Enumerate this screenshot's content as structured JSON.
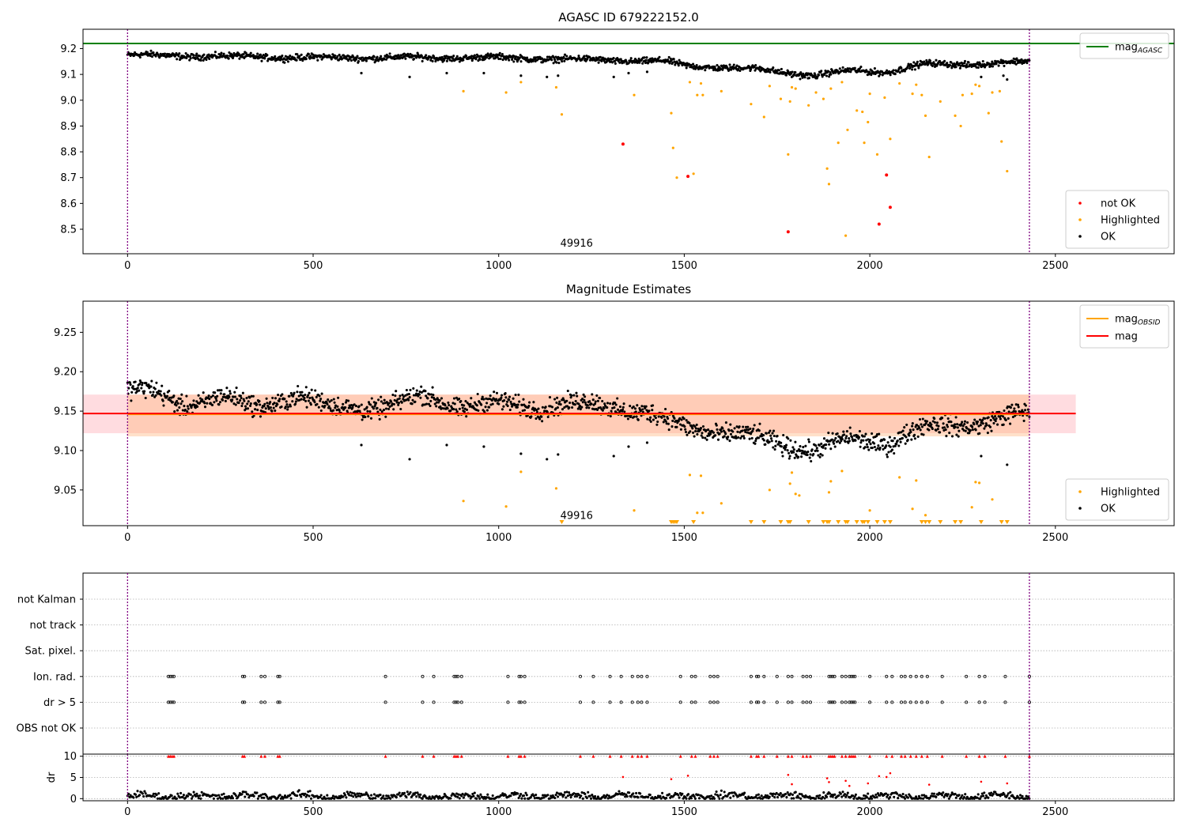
{
  "chart_data": [
    {
      "type": "scatter",
      "title": "AGASC ID 679222152.0",
      "xlim": [
        -120,
        2820
      ],
      "ylim": [
        8.405,
        9.275
      ],
      "xticks": [
        0,
        500,
        1000,
        1500,
        2000,
        2500
      ],
      "yticks": [
        8.5,
        8.6,
        8.7,
        8.8,
        8.9,
        9.0,
        9.1,
        9.2
      ],
      "ytick_decimals": 1,
      "obs_boundaries": [
        0,
        2430
      ],
      "obsid_annotation": {
        "text": "49916",
        "x": 1210,
        "y": 8.445
      },
      "reference_lines": [
        {
          "name": "mag_AGASC",
          "y": 9.22,
          "x_range": [
            -120,
            2820
          ],
          "color": "#008000"
        }
      ],
      "legend_top": [
        {
          "main": "mag",
          "sub": "AGASC",
          "color": "#008000"
        }
      ],
      "legend_bottom": [
        {
          "label": "not OK",
          "color": "#ff0000"
        },
        {
          "label": "Highlighted",
          "color": "#ffa500"
        },
        {
          "label": "OK",
          "color": "#000000"
        }
      ],
      "ok_trend": [
        [
          0,
          9.175
        ],
        [
          250,
          9.17
        ],
        [
          500,
          9.165
        ],
        [
          900,
          9.165
        ],
        [
          1000,
          9.165
        ],
        [
          1150,
          9.16
        ],
        [
          1300,
          9.155
        ],
        [
          1450,
          9.15
        ],
        [
          1500,
          9.135
        ],
        [
          1700,
          9.12
        ],
        [
          1850,
          9.095
        ],
        [
          1950,
          9.115
        ],
        [
          2050,
          9.11
        ],
        [
          2150,
          9.14
        ],
        [
          2300,
          9.14
        ],
        [
          2430,
          9.15
        ]
      ],
      "ok_scatter_amplitude": 0.011,
      "ok_outliers": [
        [
          630,
          9.105
        ],
        [
          760,
          9.09
        ],
        [
          860,
          9.105
        ],
        [
          960,
          9.105
        ],
        [
          1060,
          9.095
        ],
        [
          1130,
          9.09
        ],
        [
          1160,
          9.095
        ],
        [
          1310,
          9.09
        ],
        [
          1350,
          9.105
        ],
        [
          1400,
          9.11
        ],
        [
          2300,
          9.09
        ],
        [
          2360,
          9.095
        ],
        [
          2370,
          9.08
        ]
      ],
      "highlighted": [
        [
          905,
          9.035
        ],
        [
          1020,
          9.03
        ],
        [
          1060,
          9.07
        ],
        [
          1155,
          9.05
        ],
        [
          1170,
          8.945
        ],
        [
          1365,
          9.02
        ],
        [
          1465,
          8.95
        ],
        [
          1470,
          8.815
        ],
        [
          1480,
          8.7
        ],
        [
          1515,
          9.07
        ],
        [
          1525,
          8.715
        ],
        [
          1535,
          9.02
        ],
        [
          1545,
          9.065
        ],
        [
          1550,
          9.02
        ],
        [
          1600,
          9.035
        ],
        [
          1680,
          8.985
        ],
        [
          1715,
          8.935
        ],
        [
          1730,
          9.055
        ],
        [
          1760,
          9.005
        ],
        [
          1780,
          8.79
        ],
        [
          1785,
          8.995
        ],
        [
          1790,
          9.05
        ],
        [
          1800,
          9.045
        ],
        [
          1835,
          8.98
        ],
        [
          1855,
          9.03
        ],
        [
          1875,
          9.005
        ],
        [
          1885,
          8.735
        ],
        [
          1890,
          8.675
        ],
        [
          1895,
          9.045
        ],
        [
          1915,
          8.835
        ],
        [
          1925,
          9.07
        ],
        [
          1935,
          8.475
        ],
        [
          1940,
          8.885
        ],
        [
          1965,
          8.96
        ],
        [
          1980,
          8.955
        ],
        [
          1985,
          8.835
        ],
        [
          1995,
          8.915
        ],
        [
          2000,
          9.025
        ],
        [
          2020,
          8.79
        ],
        [
          2040,
          9.01
        ],
        [
          2055,
          8.85
        ],
        [
          2080,
          9.065
        ],
        [
          2115,
          9.025
        ],
        [
          2125,
          9.06
        ],
        [
          2140,
          9.02
        ],
        [
          2150,
          8.94
        ],
        [
          2160,
          8.78
        ],
        [
          2190,
          8.995
        ],
        [
          2230,
          8.94
        ],
        [
          2245,
          8.9
        ],
        [
          2250,
          9.02
        ],
        [
          2275,
          9.025
        ],
        [
          2285,
          9.06
        ],
        [
          2295,
          9.055
        ],
        [
          2320,
          8.95
        ],
        [
          2330,
          9.03
        ],
        [
          2350,
          9.035
        ],
        [
          2355,
          8.84
        ],
        [
          2370,
          8.725
        ]
      ],
      "not_ok": [
        [
          1335,
          8.83
        ],
        [
          1510,
          8.705
        ],
        [
          1780,
          8.49
        ],
        [
          2025,
          8.52
        ],
        [
          2045,
          8.71
        ],
        [
          2055,
          8.585
        ]
      ]
    },
    {
      "type": "scatter",
      "title": "Magnitude Estimates",
      "xlim": [
        -120,
        2820
      ],
      "ylim": [
        9.0047,
        9.2895
      ],
      "xticks": [
        0,
        500,
        1000,
        1500,
        2000,
        2500
      ],
      "yticks": [
        9.05,
        9.1,
        9.15,
        9.2,
        9.25
      ],
      "ytick_decimals": 2,
      "obs_boundaries": [
        0,
        2430
      ],
      "obsid_annotation": {
        "text": "49916",
        "x": 1210,
        "y": 9.017
      },
      "bands": [
        {
          "name": "mag band",
          "y_low": 9.122,
          "y_high": 9.171,
          "x_range": [
            -120,
            2555
          ],
          "color": "#ff9aa6",
          "opacity": 0.35
        },
        {
          "name": "mag_OBSID band",
          "y_low": 9.118,
          "y_high": 9.171,
          "x_range": [
            0,
            2430
          ],
          "color": "#ffb37a",
          "opacity": 0.4
        }
      ],
      "reference_lines": [
        {
          "name": "mag_OBSID",
          "y": 9.146,
          "x_range": [
            0,
            2430
          ],
          "color": "#ffa500"
        },
        {
          "name": "mag",
          "y": 9.147,
          "x_range": [
            -120,
            2555
          ],
          "color": "#ff0000"
        }
      ],
      "legend_top": [
        {
          "main": "mag",
          "sub": "OBSID",
          "color": "#ffa500"
        },
        {
          "main": "mag",
          "sub": "",
          "color": "#ff0000"
        }
      ],
      "legend_bottom": [
        {
          "label": "Highlighted",
          "color": "#ffa500"
        },
        {
          "label": "OK",
          "color": "#000000"
        }
      ],
      "ok_trend": [
        [
          0,
          9.178
        ],
        [
          60,
          9.175
        ],
        [
          150,
          9.158
        ],
        [
          250,
          9.168
        ],
        [
          350,
          9.155
        ],
        [
          450,
          9.17
        ],
        [
          550,
          9.155
        ],
        [
          700,
          9.155
        ],
        [
          800,
          9.17
        ],
        [
          900,
          9.155
        ],
        [
          1000,
          9.16
        ],
        [
          1100,
          9.155
        ],
        [
          1250,
          9.16
        ],
        [
          1400,
          9.148
        ],
        [
          1500,
          9.13
        ],
        [
          1650,
          9.12
        ],
        [
          1700,
          9.115
        ],
        [
          1850,
          9.1
        ],
        [
          1950,
          9.115
        ],
        [
          2050,
          9.11
        ],
        [
          2150,
          9.13
        ],
        [
          2300,
          9.135
        ],
        [
          2430,
          9.148
        ]
      ],
      "ok_scatter_amplitude": 0.011,
      "ok_outliers": [
        [
          630,
          9.107
        ],
        [
          760,
          9.089
        ],
        [
          860,
          9.107
        ],
        [
          960,
          9.105
        ],
        [
          1060,
          9.096
        ],
        [
          1130,
          9.089
        ],
        [
          1160,
          9.095
        ],
        [
          1310,
          9.093
        ],
        [
          1350,
          9.105
        ],
        [
          1400,
          9.11
        ],
        [
          2300,
          9.093
        ],
        [
          2370,
          9.082
        ]
      ],
      "highlighted": [
        [
          905,
          9.036
        ],
        [
          1020,
          9.029
        ],
        [
          1060,
          9.073
        ],
        [
          1155,
          9.052
        ],
        [
          1365,
          9.024
        ],
        [
          1515,
          9.069
        ],
        [
          1535,
          9.021
        ],
        [
          1545,
          9.068
        ],
        [
          1550,
          9.021
        ],
        [
          1600,
          9.033
        ],
        [
          1730,
          9.05
        ],
        [
          1785,
          9.058
        ],
        [
          1790,
          9.072
        ],
        [
          1800,
          9.045
        ],
        [
          1810,
          9.043
        ],
        [
          1890,
          9.047
        ],
        [
          1895,
          9.061
        ],
        [
          1925,
          9.074
        ],
        [
          2000,
          9.024
        ],
        [
          2080,
          9.066
        ],
        [
          2115,
          9.026
        ],
        [
          2125,
          9.062
        ],
        [
          2150,
          9.018
        ],
        [
          2275,
          9.028
        ],
        [
          2285,
          9.06
        ],
        [
          2295,
          9.059
        ],
        [
          2330,
          9.038
        ]
      ],
      "below_axis_markers": [
        1170,
        1465,
        1470,
        1475,
        1480,
        1525,
        1680,
        1715,
        1760,
        1780,
        1785,
        1835,
        1875,
        1885,
        1890,
        1915,
        1935,
        1940,
        1965,
        1980,
        1985,
        1995,
        2020,
        2040,
        2055,
        2140,
        2150,
        2160,
        2190,
        2230,
        2245,
        2300,
        2355,
        2370
      ]
    },
    {
      "type": "scatter",
      "title": "",
      "xlim": [
        -120,
        2820
      ],
      "category_labels": [
        "not Kalman",
        "not track",
        "Sat. pixel.",
        "Ion. rad.",
        "dr > 5",
        "OBS not OK"
      ],
      "flag_points": {
        "ion_rad": [
          110,
          115,
          120,
          125,
          310,
          315,
          360,
          370,
          405,
          410,
          695,
          795,
          825,
          880,
          885,
          890,
          900,
          1025,
          1055,
          1060,
          1070,
          1220,
          1255,
          1300,
          1330,
          1360,
          1375,
          1385,
          1400,
          1490,
          1520,
          1530,
          1570,
          1580,
          1590,
          1680,
          1695,
          1700,
          1715,
          1750,
          1780,
          1790,
          1820,
          1830,
          1840,
          1890,
          1895,
          1900,
          1905,
          1925,
          1935,
          1945,
          1950,
          1955,
          1960,
          2000,
          2045,
          2060,
          2085,
          2095,
          2110,
          2125,
          2140,
          2155,
          2195,
          2260,
          2295,
          2310,
          2365,
          2430
        ],
        "dr_gt_5": [
          110,
          115,
          120,
          125,
          310,
          315,
          360,
          370,
          405,
          410,
          695,
          795,
          825,
          880,
          885,
          890,
          900,
          1025,
          1055,
          1060,
          1070,
          1220,
          1255,
          1300,
          1330,
          1360,
          1375,
          1385,
          1400,
          1490,
          1520,
          1530,
          1570,
          1580,
          1590,
          1680,
          1695,
          1700,
          1715,
          1750,
          1780,
          1790,
          1820,
          1830,
          1840,
          1890,
          1895,
          1900,
          1905,
          1925,
          1935,
          1945,
          1950,
          1955,
          1960,
          2000,
          2045,
          2060,
          2085,
          2095,
          2110,
          2125,
          2140,
          2155,
          2195,
          2260,
          2295,
          2310,
          2365,
          2430
        ]
      },
      "dr_subplot": {
        "ylabel": "dr",
        "ylim": [
          -0.5,
          10.5
        ],
        "yticks": [
          0,
          5,
          10
        ],
        "baseline": 0.6,
        "scatter_amplitude": 0.6,
        "clipped_value": 10,
        "spikes": [
          [
            1335,
            5.1
          ],
          [
            1465,
            4.6
          ],
          [
            1510,
            5.4
          ],
          [
            1780,
            5.6
          ],
          [
            1790,
            3.4
          ],
          [
            1885,
            4.8
          ],
          [
            1890,
            3.9
          ],
          [
            1935,
            4.2
          ],
          [
            1945,
            3.0
          ],
          [
            1995,
            3.6
          ],
          [
            2025,
            5.3
          ],
          [
            2045,
            5.1
          ],
          [
            2055,
            6.0
          ],
          [
            2160,
            3.3
          ],
          [
            2300,
            4.0
          ],
          [
            2370,
            3.6
          ]
        ]
      },
      "obs_boundaries": [
        0,
        2430
      ]
    }
  ]
}
